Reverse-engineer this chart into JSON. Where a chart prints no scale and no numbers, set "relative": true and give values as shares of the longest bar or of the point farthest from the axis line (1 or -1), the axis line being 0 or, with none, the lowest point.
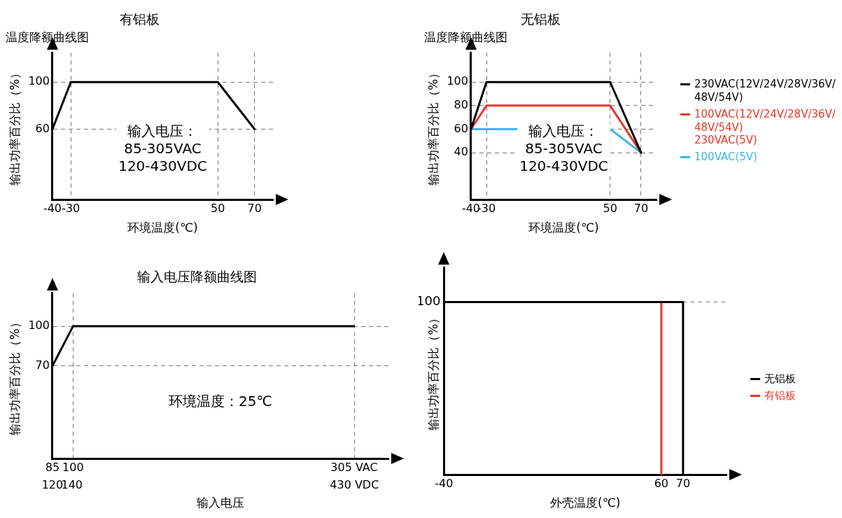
{
  "chart_data": [
    {
      "type": "line",
      "title": "有铝板",
      "subtitle": "温度降额曲线图",
      "xlabel": "环境温度(℃)",
      "ylabel": "输出功率百分比（%）",
      "xlim": [
        -40,
        80
      ],
      "xticks": [
        -40,
        -30,
        50,
        70
      ],
      "ylim": [
        0,
        125
      ],
      "yticks": [
        60,
        100
      ],
      "grid": true,
      "annotations": [
        "输入电压：\n85-305VAC\n120-430VDC"
      ],
      "series": [
        {
          "color": "#000000",
          "x": [
            -40,
            -30,
            50,
            70
          ],
          "values": [
            60,
            100,
            100,
            60
          ]
        }
      ]
    },
    {
      "type": "line",
      "title": "无铝板",
      "subtitle": "温度降额曲线图",
      "xlabel": "环境温度(℃)",
      "ylabel": "输出功率百分比（%）",
      "xlim": [
        -40,
        80
      ],
      "xticks": [
        -40,
        -30,
        50,
        70
      ],
      "ylim": [
        0,
        125
      ],
      "yticks": [
        40,
        60,
        80,
        100
      ],
      "grid": true,
      "legend": "right",
      "annotations": [
        "输入电压：\n85-305VAC\n120-430VDC"
      ],
      "series": [
        {
          "name": "230VAC(12V/24V/28V/36V/48V/54V)",
          "color": "#000000",
          "x": [
            -40,
            -30,
            50,
            70
          ],
          "values": [
            60,
            100,
            100,
            40
          ]
        },
        {
          "name": "100VAC(12V/24V/28V/36V/48V/54V)\n230VAC(5V)",
          "color": "#e0392b",
          "x": [
            -40,
            -30,
            50,
            70
          ],
          "values": [
            60,
            80,
            80,
            40
          ]
        },
        {
          "name": "100VAC(5V)",
          "color": "#3fb6e6",
          "x": [
            -40,
            -30,
            50,
            70
          ],
          "values": [
            60,
            60,
            60,
            40
          ]
        }
      ]
    },
    {
      "type": "line",
      "title": "输入电压降额曲线图",
      "xlabel": "输入电压",
      "ylabel": "输出功率百分比（%）",
      "xlim": [
        85,
        330
      ],
      "xticks": [
        85,
        100,
        {
          "value": 305,
          "label": "305 VAC"
        }
      ],
      "x2lim": [
        120,
        465
      ],
      "x2ticks": [
        120,
        140,
        {
          "value": 430,
          "label": "430 VDC"
        }
      ],
      "ylim": [
        0,
        125
      ],
      "yticks": [
        70,
        100
      ],
      "grid": true,
      "annotations": [
        "环境温度：25℃"
      ],
      "series": [
        {
          "color": "#000000",
          "x": [
            85,
            100,
            305
          ],
          "values": [
            70,
            100,
            100
          ]
        }
      ]
    },
    {
      "type": "line",
      "relative": true,
      "xlabel": "外壳温度(℃)",
      "ylabel": "输出功率百分比（%）",
      "xlim": [
        -40,
        90
      ],
      "xticks": [
        -40,
        60,
        70
      ],
      "legend": "right",
      "annotations": [
        {
          "text": "100",
          "x": -40,
          "y": 1
        }
      ],
      "ref_lines": [
        {
          "axis": "y",
          "value": 1,
          "line_style": "dashed",
          "color": "#777777"
        }
      ],
      "series": [
        {
          "name": "无铝板",
          "color": "#000000",
          "x": [
            -40,
            70,
            70
          ],
          "values": [
            1,
            1,
            0
          ]
        },
        {
          "name": "有铝板",
          "color": "#e0392b",
          "x": [
            60,
            60
          ],
          "values": [
            1,
            0
          ]
        }
      ]
    }
  ]
}
